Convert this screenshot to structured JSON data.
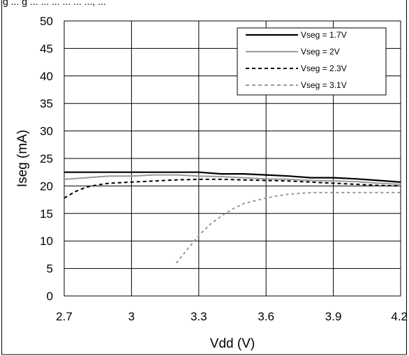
{
  "header": {
    "title_partial": "g ... g ... ... ... ... ... ..., ..."
  },
  "chart_data": {
    "type": "line",
    "xlabel": "Vdd (V)",
    "ylabel": "Iseg (mA)",
    "xlim": [
      2.7,
      4.2
    ],
    "ylim": [
      0,
      50
    ],
    "x_ticks": [
      "2.7",
      "3",
      "3.3",
      "3.6",
      "3.9",
      "4.2"
    ],
    "y_ticks": [
      "0",
      "5",
      "10",
      "15",
      "20",
      "25",
      "30",
      "35",
      "40",
      "45",
      "50"
    ],
    "grid": true,
    "legend_position": "top-right",
    "series": [
      {
        "name": "Vseg = 1.7V",
        "color": "#000000",
        "style": "solid",
        "x": [
          2.7,
          2.8,
          2.9,
          3.0,
          3.1,
          3.2,
          3.3,
          3.4,
          3.5,
          3.6,
          3.7,
          3.8,
          3.9,
          4.0,
          4.1,
          4.2
        ],
        "y": [
          22.5,
          22.5,
          22.5,
          22.5,
          22.5,
          22.5,
          22.5,
          22.2,
          22.2,
          22.0,
          21.8,
          21.5,
          21.5,
          21.3,
          21.0,
          20.7
        ]
      },
      {
        "name": "Vseg = 2V",
        "color": "#999999",
        "style": "solid",
        "x": [
          2.7,
          2.8,
          2.9,
          3.0,
          3.1,
          3.2,
          3.3,
          3.4,
          3.5,
          3.6,
          3.7,
          3.8,
          3.9,
          4.0,
          4.1,
          4.2
        ],
        "y": [
          21.2,
          21.5,
          21.8,
          21.8,
          22.0,
          22.0,
          21.8,
          21.7,
          21.5,
          21.3,
          21.2,
          21.0,
          20.9,
          20.8,
          20.5,
          20.3
        ]
      },
      {
        "name": "Vseg = 2.3V",
        "color": "#000000",
        "style": "dashed",
        "x": [
          2.7,
          2.75,
          2.8,
          2.85,
          2.9,
          3.0,
          3.1,
          3.2,
          3.3,
          3.4,
          3.5,
          3.6,
          3.7,
          3.8,
          3.9,
          4.0,
          4.1,
          4.2
        ],
        "y": [
          17.8,
          19.0,
          19.8,
          20.2,
          20.5,
          20.7,
          20.9,
          21.1,
          21.2,
          21.2,
          21.1,
          21.0,
          20.9,
          20.7,
          20.5,
          20.3,
          20.1,
          20.0
        ]
      },
      {
        "name": "Vseg = 3.1V",
        "color": "#999999",
        "style": "dashed",
        "x": [
          3.2,
          3.25,
          3.3,
          3.35,
          3.4,
          3.45,
          3.5,
          3.55,
          3.6,
          3.65,
          3.7,
          3.8,
          3.9,
          4.0,
          4.1,
          4.2
        ],
        "y": [
          6.0,
          8.5,
          11.0,
          13.0,
          14.5,
          15.8,
          16.8,
          17.3,
          17.8,
          18.2,
          18.5,
          18.8,
          18.8,
          18.8,
          18.8,
          18.8
        ]
      }
    ]
  }
}
